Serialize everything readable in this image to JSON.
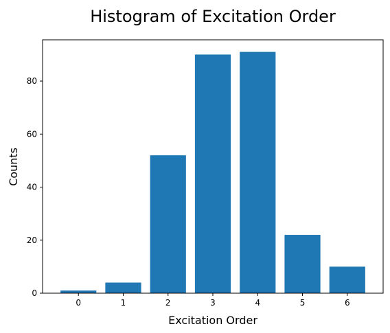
{
  "chart_data": {
    "type": "bar",
    "title": "Histogram of Excitation Order",
    "xlabel": "Excitation Order",
    "ylabel": "Counts",
    "categories": [
      "0",
      "1",
      "2",
      "3",
      "4",
      "5",
      "6"
    ],
    "values": [
      1,
      4,
      52,
      90,
      91,
      22,
      10
    ],
    "ylim": [
      0,
      95.55
    ],
    "yticks": [
      0,
      20,
      40,
      60,
      80
    ],
    "bar_color": "#1f77b4",
    "grid": false
  }
}
